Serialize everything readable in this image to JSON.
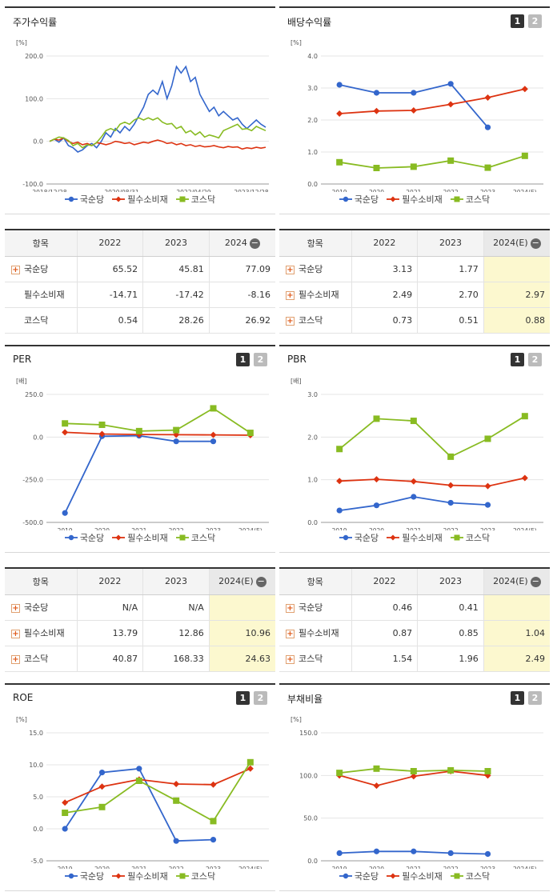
{
  "colors": {
    "kukdang": "#3366cc",
    "staples": "#dd3311",
    "kosdaq": "#88bb22"
  },
  "legend": [
    "국순당",
    "필수소비재",
    "코스닥"
  ],
  "panels": {
    "p1": {
      "title": "주가수익률"
    },
    "p2": {
      "title": "배당수익률",
      "pager": [
        "1",
        "2"
      ]
    },
    "p3": {
      "title": "PER",
      "pager": [
        "1",
        "2"
      ]
    },
    "p4": {
      "title": "PBR",
      "pager": [
        "1",
        "2"
      ]
    },
    "p5": {
      "title": "ROE",
      "pager": [
        "1",
        "2"
      ]
    },
    "p6": {
      "title": "부채비율",
      "pager": [
        "1",
        "2"
      ]
    }
  },
  "chart_data": [
    {
      "id": "price",
      "type": "line",
      "unit": "[%]",
      "ylim": [
        -100,
        200
      ],
      "yticks": [
        "200.0",
        "100.0",
        "0.0",
        "-100.0"
      ],
      "x_tick_labels": [
        "2018/12/28",
        "2020/08/31",
        "2022/04/29",
        "2023/12/28"
      ],
      "x_tick_index": [
        0,
        20,
        40,
        60
      ],
      "series": [
        {
          "name": "국순당",
          "values": [
            0,
            5,
            -2,
            8,
            -10,
            -15,
            -25,
            -20,
            -10,
            -5,
            -15,
            0,
            20,
            10,
            30,
            20,
            35,
            25,
            40,
            60,
            80,
            110,
            120,
            110,
            140,
            100,
            130,
            175,
            160,
            175,
            140,
            150,
            110,
            90,
            70,
            80,
            60,
            70,
            60,
            50,
            55,
            40,
            30,
            40,
            50,
            40,
            33
          ]
        },
        {
          "name": "필수소비재",
          "values": [
            0,
            5,
            3,
            8,
            0,
            -5,
            -2,
            -8,
            -5,
            -10,
            -3,
            -5,
            -8,
            -5,
            0,
            -2,
            -5,
            -3,
            -8,
            -5,
            -2,
            -4,
            0,
            3,
            0,
            -5,
            -3,
            -8,
            -5,
            -10,
            -8,
            -12,
            -10,
            -13,
            -12,
            -10,
            -13,
            -15,
            -12,
            -14,
            -13,
            -18,
            -15,
            -17,
            -14,
            -16,
            -14
          ]
        },
        {
          "name": "코스닥",
          "values": [
            0,
            5,
            10,
            8,
            2,
            -10,
            -5,
            -15,
            -8,
            -10,
            -3,
            10,
            25,
            30,
            25,
            40,
            45,
            40,
            50,
            55,
            50,
            55,
            50,
            55,
            45,
            40,
            42,
            30,
            35,
            20,
            25,
            15,
            22,
            10,
            15,
            12,
            8,
            25,
            30,
            35,
            40,
            28,
            30,
            25,
            35,
            30,
            25
          ]
        }
      ]
    },
    {
      "id": "dividend",
      "type": "line",
      "unit": "[%]",
      "ylim": [
        0,
        4
      ],
      "yticks": [
        "4.0",
        "3.0",
        "2.0",
        "1.0",
        "0.0"
      ],
      "categories": [
        "2019",
        "2020",
        "2021",
        "2022",
        "2023",
        "2024(E)"
      ],
      "series": [
        {
          "name": "국순당",
          "values": [
            3.1,
            2.85,
            2.85,
            3.13,
            1.77,
            null
          ]
        },
        {
          "name": "필수소비재",
          "values": [
            2.2,
            2.28,
            2.3,
            2.49,
            2.7,
            2.97
          ]
        },
        {
          "name": "코스닥",
          "values": [
            0.68,
            0.5,
            0.54,
            0.73,
            0.51,
            0.88
          ]
        }
      ]
    },
    {
      "id": "per",
      "type": "line",
      "unit": "[배]",
      "ylim": [
        -500,
        250
      ],
      "yticks": [
        "250.0",
        "0.0",
        "-250.0",
        "-500.0"
      ],
      "categories": [
        "2019",
        "2020",
        "2021",
        "2022",
        "2023",
        "2024(E)"
      ],
      "series": [
        {
          "name": "국순당",
          "values": [
            -445,
            5,
            8,
            -25,
            -25,
            null
          ]
        },
        {
          "name": "필수소비재",
          "values": [
            28,
            18,
            15,
            13.79,
            12.86,
            10.96
          ]
        },
        {
          "name": "코스닥",
          "values": [
            80,
            72,
            35,
            40.87,
            168.33,
            24.63
          ]
        }
      ]
    },
    {
      "id": "pbr",
      "type": "line",
      "unit": "[배]",
      "ylim": [
        0,
        3
      ],
      "yticks": [
        "3.0",
        "2.0",
        "1.0",
        "0.0"
      ],
      "categories": [
        "2019",
        "2020",
        "2021",
        "2022",
        "2023",
        "2024(E)"
      ],
      "series": [
        {
          "name": "국순당",
          "values": [
            0.28,
            0.4,
            0.6,
            0.46,
            0.41,
            null
          ]
        },
        {
          "name": "필수소비재",
          "values": [
            0.97,
            1.01,
            0.96,
            0.87,
            0.85,
            1.04
          ]
        },
        {
          "name": "코스닥",
          "values": [
            1.72,
            2.43,
            2.38,
            1.54,
            1.96,
            2.49
          ]
        }
      ]
    },
    {
      "id": "roe",
      "type": "line",
      "unit": "[%]",
      "ylim": [
        -5,
        15
      ],
      "yticks": [
        "15.0",
        "10.0",
        "5.0",
        "0.0",
        "-5.0"
      ],
      "categories": [
        "2019",
        "2020",
        "2021",
        "2022",
        "2023",
        "2024(E)"
      ],
      "series": [
        {
          "name": "국순당",
          "values": [
            0,
            8.8,
            9.4,
            -1.9,
            -1.7,
            null
          ]
        },
        {
          "name": "필수소비재",
          "values": [
            4.1,
            6.6,
            7.7,
            7.0,
            6.9,
            9.4
          ]
        },
        {
          "name": "코스닥",
          "values": [
            2.5,
            3.4,
            7.5,
            4.4,
            1.2,
            10.4
          ]
        }
      ]
    },
    {
      "id": "debt",
      "type": "line",
      "unit": "[%]",
      "ylim": [
        0,
        150
      ],
      "yticks": [
        "150.0",
        "100.0",
        "50.0",
        "0.0"
      ],
      "categories": [
        "2019",
        "2020",
        "2021",
        "2022",
        "2023",
        "2024(E)"
      ],
      "series": [
        {
          "name": "국순당",
          "values": [
            9,
            11,
            11,
            9,
            8,
            null
          ]
        },
        {
          "name": "필수소비재",
          "values": [
            100,
            88,
            99,
            105,
            100,
            null
          ]
        },
        {
          "name": "코스닥",
          "values": [
            103,
            108,
            105,
            106,
            105,
            null
          ]
        }
      ]
    }
  ],
  "tables": {
    "t1": {
      "headers": [
        "항목",
        "2022",
        "2023",
        "2024"
      ],
      "rows": [
        {
          "name": "국순당",
          "values": [
            "65.52",
            "45.81",
            "77.09"
          ]
        },
        {
          "name": "필수소비재",
          "values": [
            "-14.71",
            "-17.42",
            "-8.16"
          ]
        },
        {
          "name": "코스닥",
          "values": [
            "0.54",
            "28.26",
            "26.92"
          ]
        }
      ]
    },
    "t2": {
      "headers": [
        "항목",
        "2022",
        "2023",
        "2024(E)"
      ],
      "rows": [
        {
          "name": "국순당",
          "values": [
            "3.13",
            "1.77",
            ""
          ]
        },
        {
          "name": "필수소비재",
          "values": [
            "2.49",
            "2.70",
            "2.97"
          ]
        },
        {
          "name": "코스닥",
          "values": [
            "0.73",
            "0.51",
            "0.88"
          ]
        }
      ]
    },
    "t3": {
      "headers": [
        "항목",
        "2022",
        "2023",
        "2024(E)"
      ],
      "rows": [
        {
          "name": "국순당",
          "values": [
            "N/A",
            "N/A",
            ""
          ]
        },
        {
          "name": "필수소비재",
          "values": [
            "13.79",
            "12.86",
            "10.96"
          ]
        },
        {
          "name": "코스닥",
          "values": [
            "40.87",
            "168.33",
            "24.63"
          ]
        }
      ]
    },
    "t4": {
      "headers": [
        "항목",
        "2022",
        "2023",
        "2024(E)"
      ],
      "rows": [
        {
          "name": "국순당",
          "values": [
            "0.46",
            "0.41",
            ""
          ]
        },
        {
          "name": "필수소비재",
          "values": [
            "0.87",
            "0.85",
            "1.04"
          ]
        },
        {
          "name": "코스닥",
          "values": [
            "1.54",
            "1.96",
            "2.49"
          ]
        }
      ]
    }
  }
}
